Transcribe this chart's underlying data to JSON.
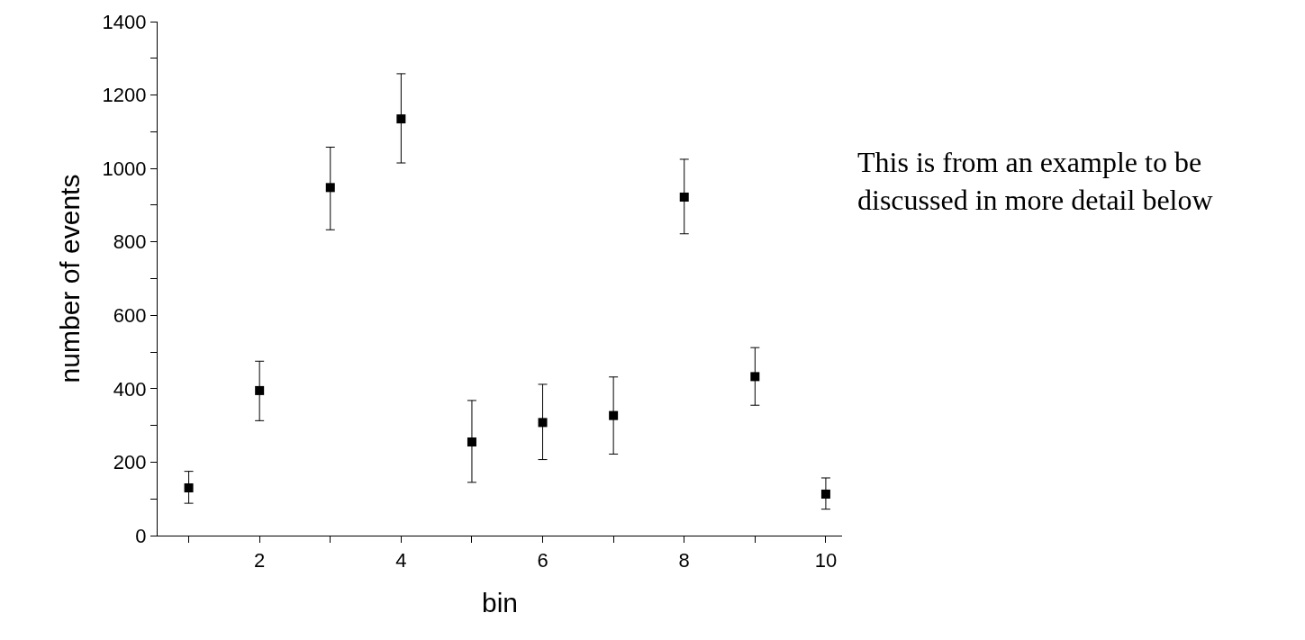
{
  "chart_data": {
    "type": "scatter",
    "xlabel": "bin",
    "ylabel": "number of events",
    "x": [
      1,
      2,
      3,
      4,
      5,
      6,
      7,
      8,
      9,
      10
    ],
    "series": [
      {
        "color": "#000000",
        "values": [
          130,
          395,
          948,
          1135,
          255,
          308,
          327,
          922,
          433,
          113
        ],
        "errors": [
          [
            88,
            175
          ],
          [
            313,
            475
          ],
          [
            833,
            1058
          ],
          [
            1015,
            1258
          ],
          [
            145,
            368
          ],
          [
            207,
            412
          ],
          [
            222,
            432
          ],
          [
            822,
            1025
          ],
          [
            355,
            512
          ],
          [
            72,
            157
          ]
        ]
      }
    ],
    "marker": "square",
    "xlim": [
      0.56,
      10.23
    ],
    "xticks": [
      {
        "value": 1,
        "label": null
      },
      2,
      {
        "value": 3,
        "label": null
      },
      4,
      {
        "value": 5,
        "label": null
      },
      6,
      {
        "value": 7,
        "label": null
      },
      8,
      {
        "value": 9,
        "label": null
      },
      10
    ],
    "ylim": [
      0,
      1400
    ],
    "yticks": [
      0,
      {
        "value": 100,
        "label": null
      },
      200,
      {
        "value": 300,
        "label": null
      },
      400,
      {
        "value": 500,
        "label": null
      },
      600,
      {
        "value": 700,
        "label": null
      },
      800,
      {
        "value": 900,
        "label": null
      },
      1000,
      {
        "value": 1100,
        "label": null
      },
      1200,
      {
        "value": 1300,
        "label": null
      },
      1400
    ],
    "annotations": [
      "This is from an example to be\ndiscussed in more detail below"
    ]
  }
}
